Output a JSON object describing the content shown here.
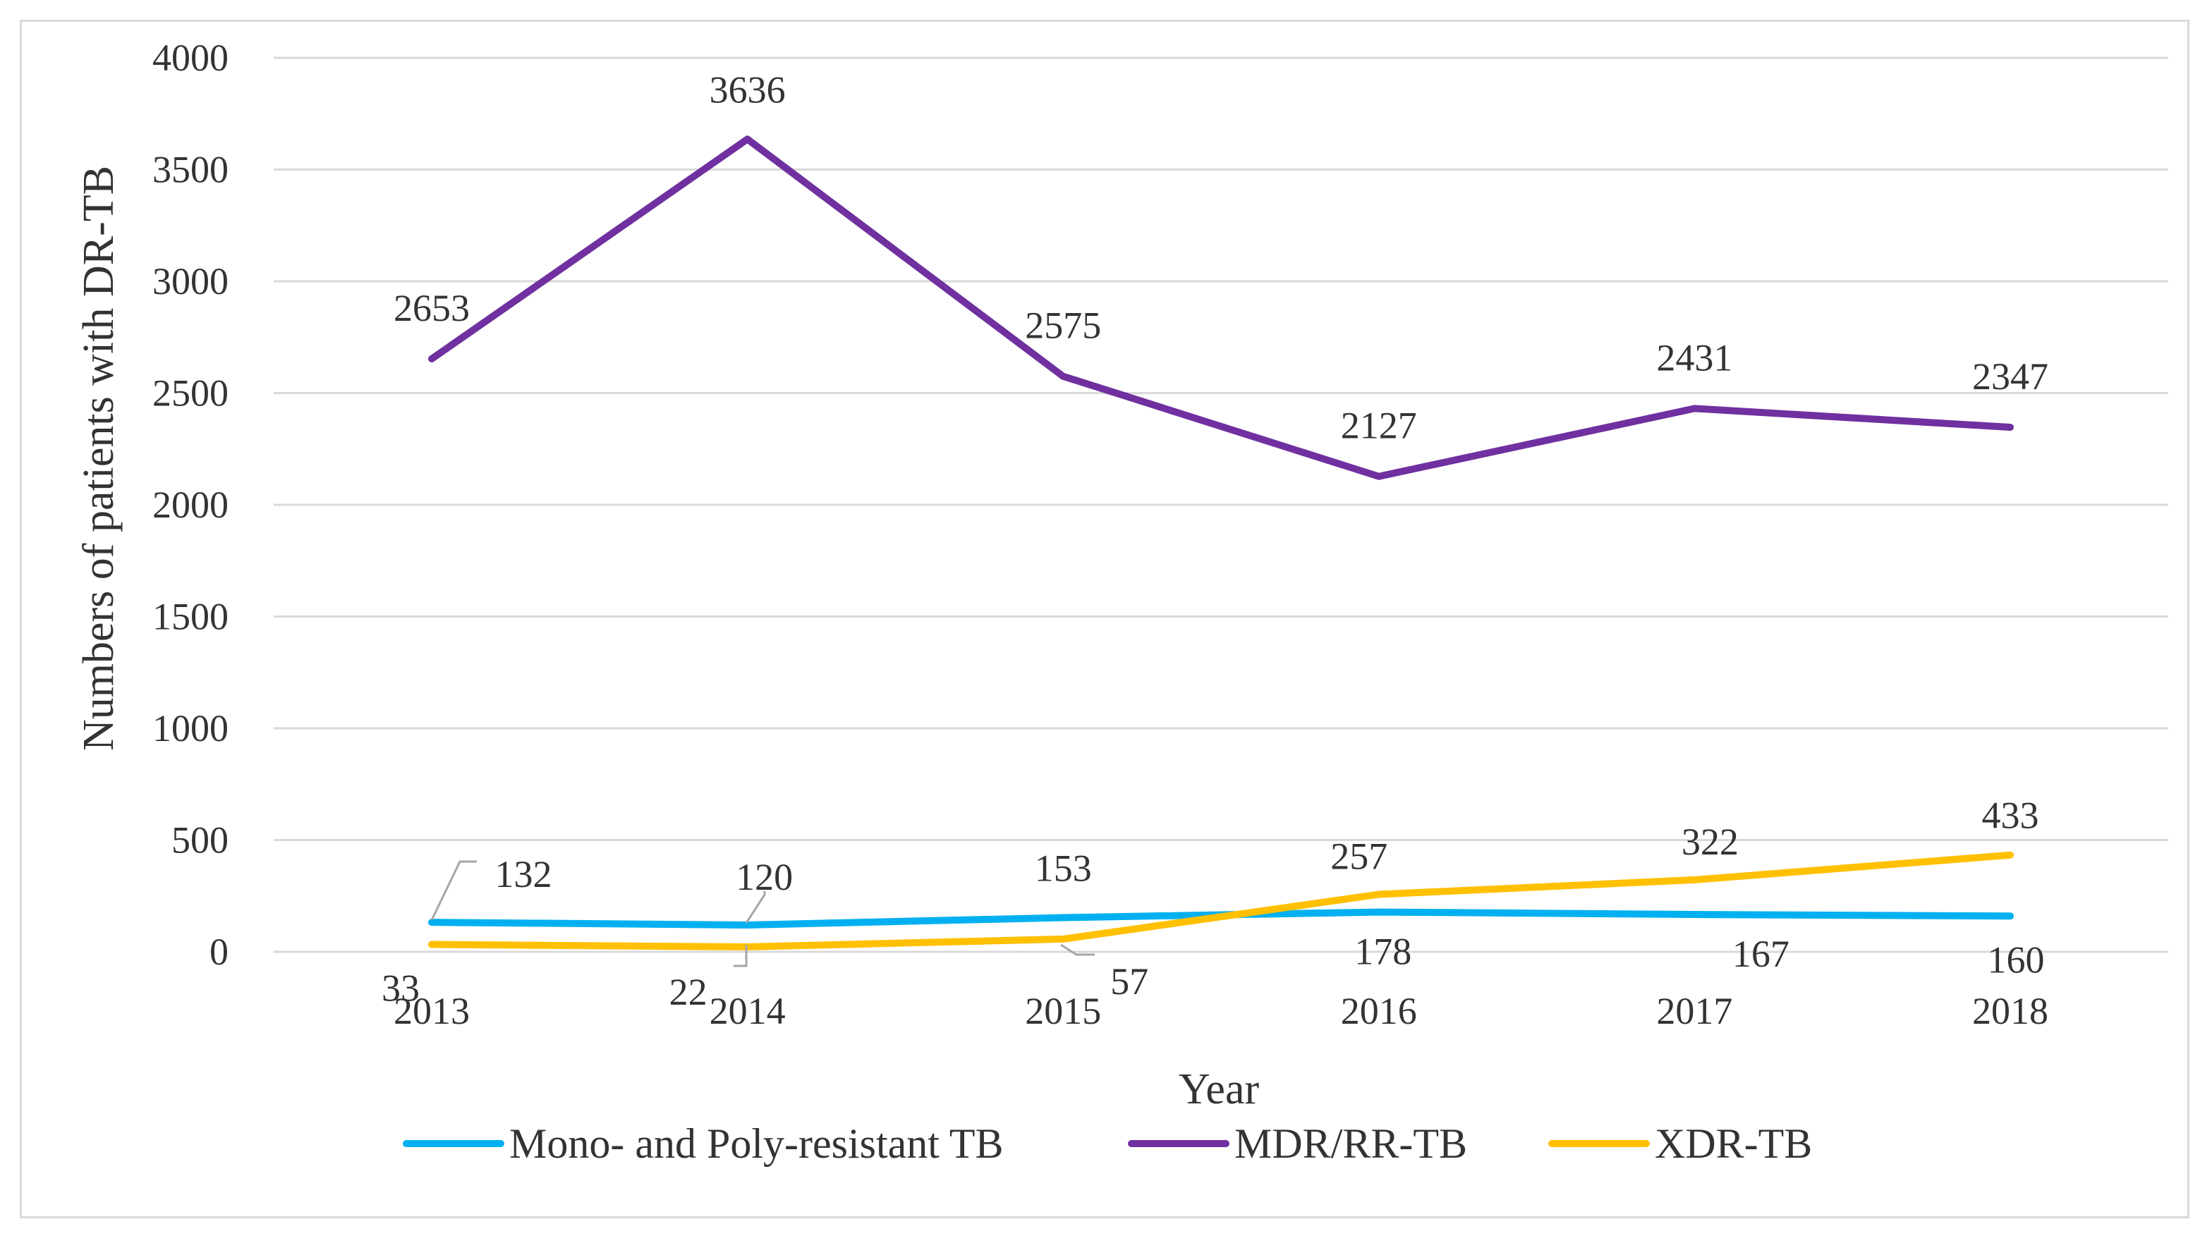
{
  "chart_data": {
    "type": "line",
    "title": "",
    "xlabel": "Year",
    "ylabel": "Numbers of patients with DR-TB",
    "categories": [
      "2013",
      "2014",
      "2015",
      "2016",
      "2017",
      "2018"
    ],
    "ylim": [
      0,
      4000
    ],
    "yticks": [
      "0",
      "500",
      "1000",
      "1500",
      "2000",
      "2500",
      "3000",
      "3500",
      "4000"
    ],
    "grid": true,
    "legend_position": "bottom",
    "series": [
      {
        "name": "Mono- and Poly-resistant TB",
        "color": "#00b0f0",
        "values": [
          132,
          120,
          153,
          178,
          167,
          160
        ]
      },
      {
        "name": "MDR/RR-TB",
        "color": "#7030a0",
        "values": [
          2653,
          3636,
          2575,
          2127,
          2431,
          2347
        ]
      },
      {
        "name": "XDR-TB",
        "color": "#ffc000",
        "values": [
          33,
          22,
          57,
          257,
          322,
          433
        ]
      }
    ],
    "data_labels": {
      "Mono- and Poly-resistant TB": [
        "132",
        "120",
        "153",
        "178",
        "167",
        "160"
      ],
      "MDR/RR-TB": [
        "2653",
        "3636",
        "2575",
        "2127",
        "2431",
        "2347"
      ],
      "XDR-TB": [
        "33",
        "22",
        "57",
        "257",
        "322",
        "433"
      ]
    }
  }
}
